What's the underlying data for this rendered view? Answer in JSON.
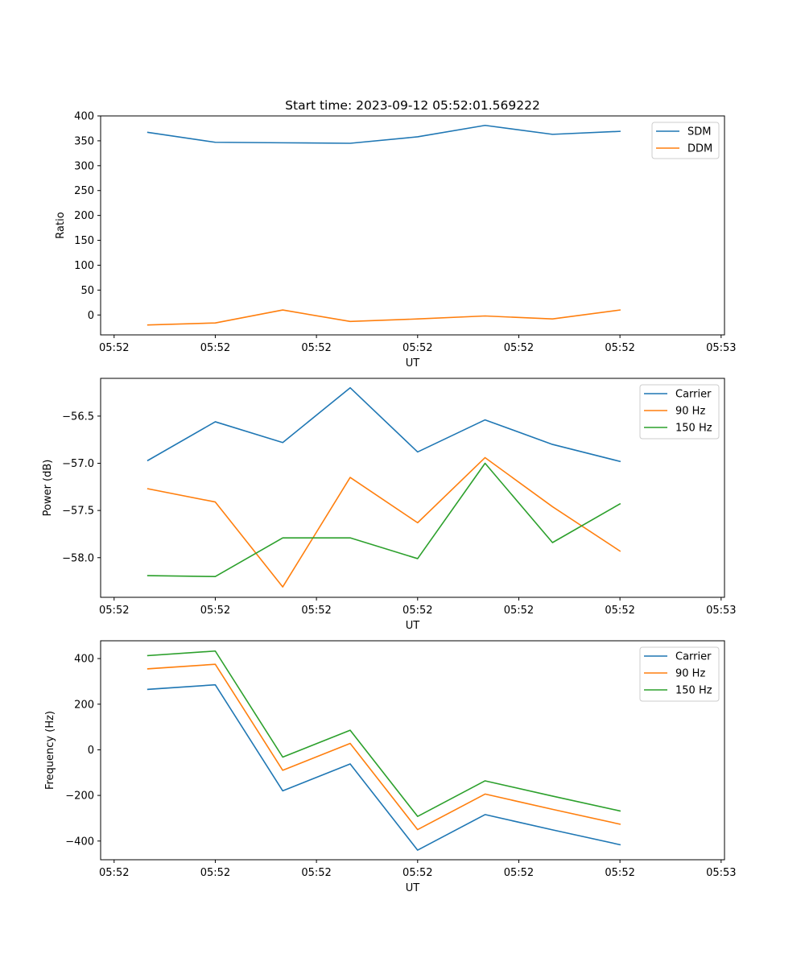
{
  "figure": {
    "title": "Start time: 2023-09-12 05:52:01.569222"
  },
  "colors": {
    "c0": "#1f77b4",
    "c1": "#ff7f0e",
    "c2": "#2ca02c"
  },
  "chart_data": [
    {
      "type": "line",
      "title": "Start time: 2023-09-12 05:52:01.569222",
      "xlabel": "UT",
      "ylabel": "Ratio",
      "x": [
        0.5,
        1.5,
        2.5,
        3.5,
        4.5,
        5.5,
        6.5,
        7.5
      ],
      "xlim": [
        -0.2,
        9.05
      ],
      "xticks": [
        0,
        1.5,
        3,
        4.5,
        6,
        7.5,
        9
      ],
      "xticklabels": [
        "05:52",
        "05:52",
        "05:52",
        "05:52",
        "05:52",
        "05:52",
        "05:53"
      ],
      "ylim": [
        -40,
        400
      ],
      "yticks": [
        0,
        50,
        100,
        150,
        200,
        250,
        300,
        350,
        400
      ],
      "yticklabels": [
        "0",
        "50",
        "100",
        "150",
        "200",
        "250",
        "300",
        "350",
        "400"
      ],
      "legend": "upper right",
      "series": [
        {
          "name": "SDM",
          "color": "#1f77b4",
          "values": [
            367,
            347,
            346,
            345,
            358,
            381,
            363,
            369
          ]
        },
        {
          "name": "DDM",
          "color": "#ff7f0e",
          "values": [
            -20,
            -16,
            10,
            -13,
            -8,
            -2,
            -8,
            10
          ]
        }
      ]
    },
    {
      "type": "line",
      "title": "",
      "xlabel": "UT",
      "ylabel": "Power (dB)",
      "x": [
        0.5,
        1.5,
        2.5,
        3.5,
        4.5,
        5.5,
        6.5,
        7.5
      ],
      "xlim": [
        -0.2,
        9.05
      ],
      "xticks": [
        0,
        1.5,
        3,
        4.5,
        6,
        7.5,
        9
      ],
      "xticklabels": [
        "05:52",
        "05:52",
        "05:52",
        "05:52",
        "05:52",
        "05:52",
        "05:53"
      ],
      "ylim": [
        -58.42,
        -56.1
      ],
      "yticks": [
        -56.5,
        -57.0,
        -57.5,
        -58.0
      ],
      "yticklabels": [
        "−56.5",
        "−57.0",
        "−57.5",
        "−58.0"
      ],
      "legend": "upper right",
      "series": [
        {
          "name": "Carrier",
          "color": "#1f77b4",
          "values": [
            -56.97,
            -56.56,
            -56.78,
            -56.2,
            -56.88,
            -56.54,
            -56.8,
            -56.98
          ]
        },
        {
          "name": "90 Hz",
          "color": "#ff7f0e",
          "values": [
            -57.27,
            -57.41,
            -58.31,
            -57.15,
            -57.63,
            -56.94,
            -57.46,
            -57.93
          ]
        },
        {
          "name": "150 Hz",
          "color": "#2ca02c",
          "values": [
            -58.19,
            -58.2,
            -57.79,
            -57.79,
            -58.01,
            -57.0,
            -57.84,
            -57.43
          ]
        }
      ]
    },
    {
      "type": "line",
      "title": "",
      "xlabel": "UT",
      "ylabel": "Frequency (Hz)",
      "x": [
        0.5,
        1.5,
        2.5,
        3.5,
        4.5,
        5.5,
        6.5,
        7.5
      ],
      "xlim": [
        -0.2,
        9.05
      ],
      "xticks": [
        0,
        1.5,
        3,
        4.5,
        6,
        7.5,
        9
      ],
      "xticklabels": [
        "05:52",
        "05:52",
        "05:52",
        "05:52",
        "05:52",
        "05:52",
        "05:53"
      ],
      "ylim": [
        -482,
        478
      ],
      "yticks": [
        400,
        200,
        0,
        -200,
        -400
      ],
      "yticklabels": [
        "400",
        "200",
        "0",
        "−200",
        "−400"
      ],
      "legend": "upper right",
      "series": [
        {
          "name": "Carrier",
          "color": "#1f77b4",
          "values": [
            265,
            285,
            -180,
            -62,
            -440,
            -284,
            -351,
            -416
          ]
        },
        {
          "name": "90 Hz",
          "color": "#ff7f0e",
          "values": [
            355,
            375,
            -90,
            28,
            -350,
            -194,
            -261,
            -326
          ]
        },
        {
          "name": "150 Hz",
          "color": "#2ca02c",
          "values": [
            413,
            433,
            -32,
            86,
            -292,
            -136,
            -203,
            -268
          ]
        }
      ]
    }
  ]
}
